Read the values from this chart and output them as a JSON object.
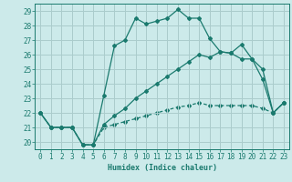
{
  "xlabel": "Humidex (Indice chaleur)",
  "bg_color": "#cceaea",
  "line_color": "#1a7a6e",
  "grid_color": "#aacccc",
  "xlim": [
    -0.5,
    23.5
  ],
  "ylim": [
    19.5,
    29.5
  ],
  "xticks": [
    0,
    1,
    2,
    3,
    4,
    5,
    6,
    7,
    8,
    9,
    10,
    11,
    12,
    13,
    14,
    15,
    16,
    17,
    18,
    19,
    20,
    21,
    22,
    23
  ],
  "yticks": [
    20,
    21,
    22,
    23,
    24,
    25,
    26,
    27,
    28,
    29
  ],
  "line1_x": [
    0,
    1,
    2,
    3,
    4,
    5,
    6,
    7,
    8,
    9,
    10,
    11,
    12,
    13,
    14,
    15,
    16,
    17,
    18,
    19,
    20,
    21,
    22,
    23
  ],
  "line1_y": [
    22,
    21,
    21,
    21,
    19.8,
    19.8,
    23.2,
    26.6,
    27,
    28.5,
    28.1,
    28.3,
    28.5,
    29.1,
    28.5,
    28.5,
    27.1,
    26.2,
    26.1,
    26.7,
    25.7,
    24.3,
    22,
    22.7
  ],
  "line2_x": [
    0,
    1,
    2,
    3,
    4,
    5,
    6,
    7,
    8,
    9,
    10,
    11,
    12,
    13,
    14,
    15,
    16,
    17,
    18,
    19,
    20,
    21,
    22,
    23
  ],
  "line2_y": [
    22,
    21,
    21,
    21,
    19.8,
    19.8,
    21.2,
    21.8,
    22.3,
    23.0,
    23.5,
    24.0,
    24.5,
    25.0,
    25.5,
    26.0,
    25.8,
    26.2,
    26.1,
    25.7,
    25.7,
    25.0,
    22,
    22.7
  ],
  "line3_x": [
    0,
    1,
    2,
    3,
    4,
    5,
    6,
    7,
    8,
    9,
    10,
    11,
    12,
    13,
    14,
    15,
    16,
    17,
    18,
    19,
    20,
    21,
    22,
    23
  ],
  "line3_y": [
    22,
    21,
    21,
    21,
    19.8,
    19.8,
    21.0,
    21.2,
    21.4,
    21.6,
    21.8,
    22.0,
    22.2,
    22.4,
    22.5,
    22.7,
    22.5,
    22.5,
    22.5,
    22.5,
    22.5,
    22.3,
    22,
    22.7
  ]
}
